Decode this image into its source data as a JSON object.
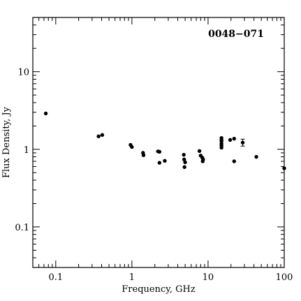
{
  "chart_data": {
    "type": "scatter",
    "title": "0048−071",
    "xlabel": "Frequency, GHz",
    "ylabel": "Flux Density, Jy",
    "xscale": "log",
    "yscale": "log",
    "xlim": [
      0.05,
      100
    ],
    "ylim": [
      0.03,
      50
    ],
    "grid": false,
    "legend": "none",
    "x_tick_labels": [
      "0.1",
      "1",
      "10",
      "100"
    ],
    "y_tick_labels": [
      "0.1",
      "1",
      "10"
    ],
    "colors": {
      "marker": "#000000",
      "axes": "#000000",
      "background": "#ffffff"
    },
    "points": [
      {
        "x": 0.074,
        "y": 2.9
      },
      {
        "x": 0.365,
        "y": 1.47
      },
      {
        "x": 0.408,
        "y": 1.53
      },
      {
        "x": 0.96,
        "y": 1.14
      },
      {
        "x": 1.0,
        "y": 1.07
      },
      {
        "x": 1.4,
        "y": 0.9
      },
      {
        "x": 1.42,
        "y": 0.84
      },
      {
        "x": 2.2,
        "y": 0.94
      },
      {
        "x": 2.3,
        "y": 0.67
      },
      {
        "x": 2.3,
        "y": 0.93
      },
      {
        "x": 2.7,
        "y": 0.71
      },
      {
        "x": 4.8,
        "y": 0.85
      },
      {
        "x": 4.85,
        "y": 0.74
      },
      {
        "x": 4.9,
        "y": 0.59
      },
      {
        "x": 5.0,
        "y": 0.68
      },
      {
        "x": 7.7,
        "y": 0.95
      },
      {
        "x": 8.0,
        "y": 0.83
      },
      {
        "x": 8.4,
        "y": 0.78
      },
      {
        "x": 8.5,
        "y": 0.7
      },
      {
        "x": 8.6,
        "y": 0.74
      },
      {
        "x": 15.0,
        "y": 1.4
      },
      {
        "x": 15.0,
        "y": 1.32
      },
      {
        "x": 15.0,
        "y": 1.27
      },
      {
        "x": 15.0,
        "y": 1.18
      },
      {
        "x": 15.0,
        "y": 1.12
      },
      {
        "x": 15.0,
        "y": 1.05
      },
      {
        "x": 19.5,
        "y": 1.32
      },
      {
        "x": 22.0,
        "y": 1.37
      },
      {
        "x": 22.0,
        "y": 0.7
      },
      {
        "x": 28.5,
        "y": 1.22,
        "yerr_low": 1.1,
        "yerr_high": 1.35
      },
      {
        "x": 43.0,
        "y": 0.8
      },
      {
        "x": 100.0,
        "y": 0.57
      }
    ]
  }
}
